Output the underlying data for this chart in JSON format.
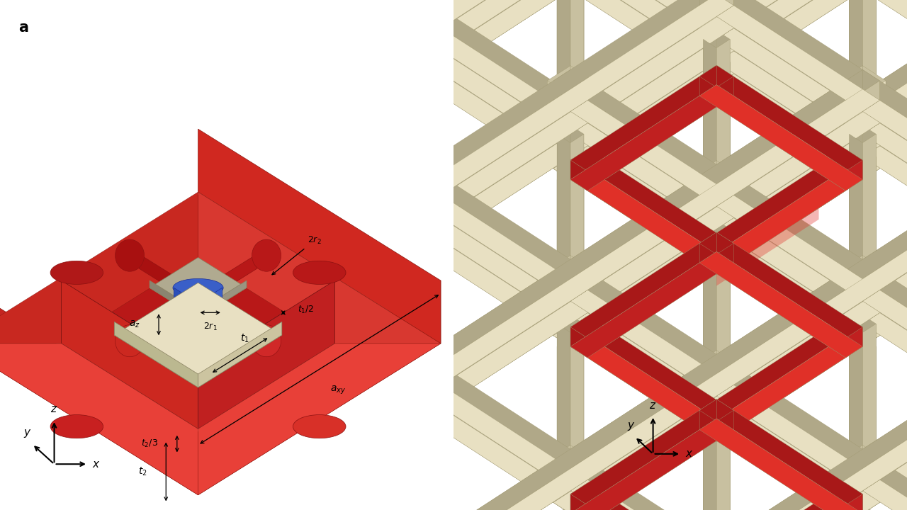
{
  "bg_color": "#ffffff",
  "red_color": "#e03028",
  "red_dark": "#c42520",
  "red_light": "#e84038",
  "red_inner": "#cc2820",
  "beige_color": "#e8e0c2",
  "beige_dark": "#ccc4a0",
  "beige_shadow": "#bbb890",
  "blue_front": "#3a5fc8",
  "blue_left": "#2a4fb8",
  "blue_top": "#5a7fe8",
  "gray_top": "#b0aa90",
  "gray_front": "#9a9480",
  "gray_left": "#8a8470"
}
